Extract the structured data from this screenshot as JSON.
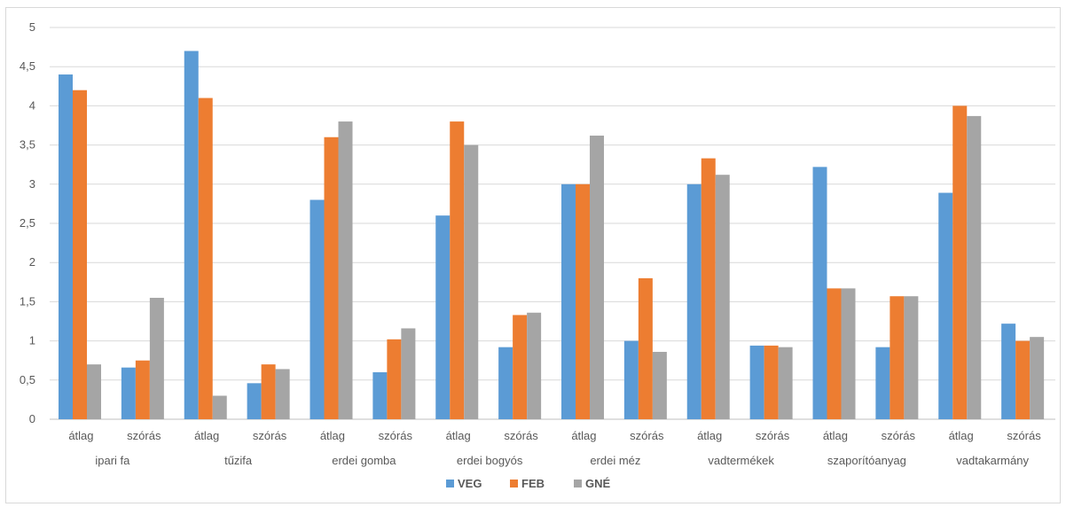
{
  "chart_data": {
    "type": "bar",
    "title": "",
    "xlabel": "",
    "ylabel": "",
    "ylim": [
      0,
      5
    ],
    "yticks": [
      "0",
      "0,5",
      "1",
      "1,5",
      "2",
      "2,5",
      "3",
      "3,5",
      "4",
      "4,5",
      "5"
    ],
    "grid": true,
    "legend_position": "bottom",
    "groups": [
      {
        "label": "ipari fa",
        "sub": [
          "átlag",
          "szórás"
        ]
      },
      {
        "label": "tűzifa",
        "sub": [
          "átlag",
          "szórás"
        ]
      },
      {
        "label": "erdei gomba",
        "sub": [
          "átlag",
          "szórás"
        ]
      },
      {
        "label": "erdei bogyós",
        "sub": [
          "átlag",
          "szórás"
        ]
      },
      {
        "label": "erdei méz",
        "sub": [
          "átlag",
          "szórás"
        ]
      },
      {
        "label": "vadtermékek",
        "sub": [
          "átlag",
          "szórás"
        ]
      },
      {
        "label": "szaporítóanyag",
        "sub": [
          "átlag",
          "szórás"
        ]
      },
      {
        "label": "vadtakarmány",
        "sub": [
          "átlag",
          "szórás"
        ]
      }
    ],
    "series": [
      {
        "name": "VEG",
        "color": "#5b9bd5",
        "values": [
          4.4,
          0.66,
          4.7,
          0.46,
          2.8,
          0.6,
          2.6,
          0.92,
          3.0,
          1.0,
          3.0,
          0.94,
          3.22,
          0.92,
          2.89,
          1.22
        ]
      },
      {
        "name": "FEB",
        "color": "#ed7d31",
        "values": [
          4.2,
          0.75,
          4.1,
          0.7,
          3.6,
          1.02,
          3.8,
          1.33,
          3.0,
          1.8,
          3.33,
          0.94,
          1.67,
          1.57,
          4.0,
          1.0
        ]
      },
      {
        "name": "GNÉ",
        "color": "#a5a5a5",
        "values": [
          0.7,
          1.55,
          0.3,
          0.64,
          3.8,
          1.16,
          3.5,
          1.36,
          3.62,
          0.86,
          3.12,
          0.92,
          1.67,
          1.57,
          3.87,
          1.05
        ]
      }
    ]
  }
}
